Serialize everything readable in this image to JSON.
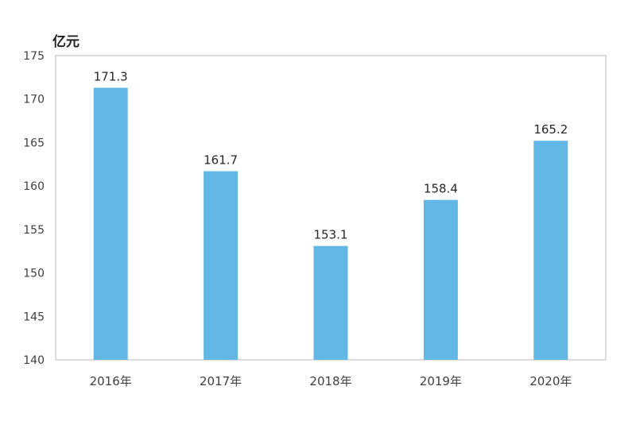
{
  "chart_data": {
    "type": "bar",
    "unit_label": "亿元",
    "categories": [
      "2016年",
      "2017年",
      "2018年",
      "2019年",
      "2020年"
    ],
    "values": [
      171.3,
      161.7,
      153.1,
      158.4,
      165.2
    ],
    "data_labels": [
      "171.3",
      "161.7",
      "153.1",
      "158.4",
      "165.2"
    ],
    "ylim": [
      140,
      175
    ],
    "yticks": [
      140,
      145,
      150,
      155,
      160,
      165,
      170,
      175
    ],
    "bar_color": "#62b7e4",
    "grid": false,
    "legend": false
  }
}
